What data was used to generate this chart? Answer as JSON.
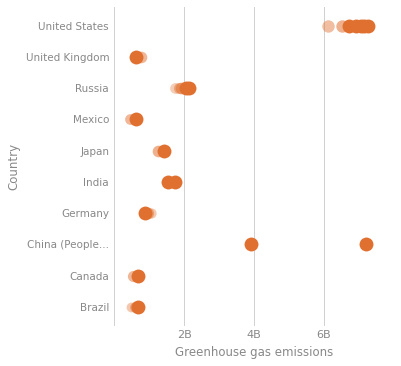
{
  "countries_top_to_bottom": [
    "United States",
    "United Kingdom",
    "Russia",
    "Mexico",
    "Japan",
    "India",
    "Germany",
    "China (People...",
    "Canada",
    "Brazil"
  ],
  "dot_color": "#E07030",
  "background_color": "#FFFFFF",
  "xlabel": "Greenhouse gas emissions",
  "ylabel": "Country",
  "grid_color": "#D0D0D0",
  "data": {
    "United States": [
      6.1,
      6.5,
      6.7,
      6.9,
      7.05,
      7.15,
      7.25
    ],
    "United Kingdom": [
      0.62,
      0.76
    ],
    "Russia": [
      1.75,
      1.85,
      1.92,
      2.05,
      2.15
    ],
    "Mexico": [
      0.45,
      0.62
    ],
    "Japan": [
      1.25,
      1.42
    ],
    "India": [
      1.55,
      1.75
    ],
    "Germany": [
      0.88,
      0.97,
      1.05
    ],
    "China (People...": [
      3.9,
      7.2
    ],
    "Canada": [
      0.55,
      0.68
    ],
    "Brazil": [
      0.5,
      0.6,
      0.68
    ]
  },
  "dot_sizes": {
    "United States": [
      80,
      80,
      100,
      100,
      100,
      100,
      100
    ],
    "United Kingdom": [
      100,
      70
    ],
    "Russia": [
      60,
      65,
      70,
      100,
      100
    ],
    "Mexico": [
      60,
      100
    ],
    "Japan": [
      70,
      100
    ],
    "India": [
      100,
      100
    ],
    "Germany": [
      100,
      65,
      55
    ],
    "China (People...": [
      100,
      100
    ],
    "Canada": [
      65,
      100
    ],
    "Brazil": [
      50,
      60,
      100
    ]
  },
  "dot_alphas": {
    "United States": [
      0.45,
      0.55,
      1.0,
      1.0,
      1.0,
      1.0,
      1.0
    ],
    "United Kingdom": [
      1.0,
      0.5
    ],
    "Russia": [
      0.35,
      0.45,
      0.55,
      1.0,
      1.0
    ],
    "Mexico": [
      0.5,
      1.0
    ],
    "Japan": [
      0.55,
      1.0
    ],
    "India": [
      1.0,
      1.0
    ],
    "Germany": [
      1.0,
      0.5,
      0.38
    ],
    "China (People...": [
      1.0,
      1.0
    ],
    "Canada": [
      0.5,
      1.0
    ],
    "Brazil": [
      0.38,
      0.5,
      1.0
    ]
  },
  "xlim": [
    0,
    8000000000
  ],
  "xticks": [
    0,
    2000000000,
    4000000000,
    6000000000
  ],
  "xticklabels": [
    "",
    "2B",
    "4B",
    "6B"
  ]
}
